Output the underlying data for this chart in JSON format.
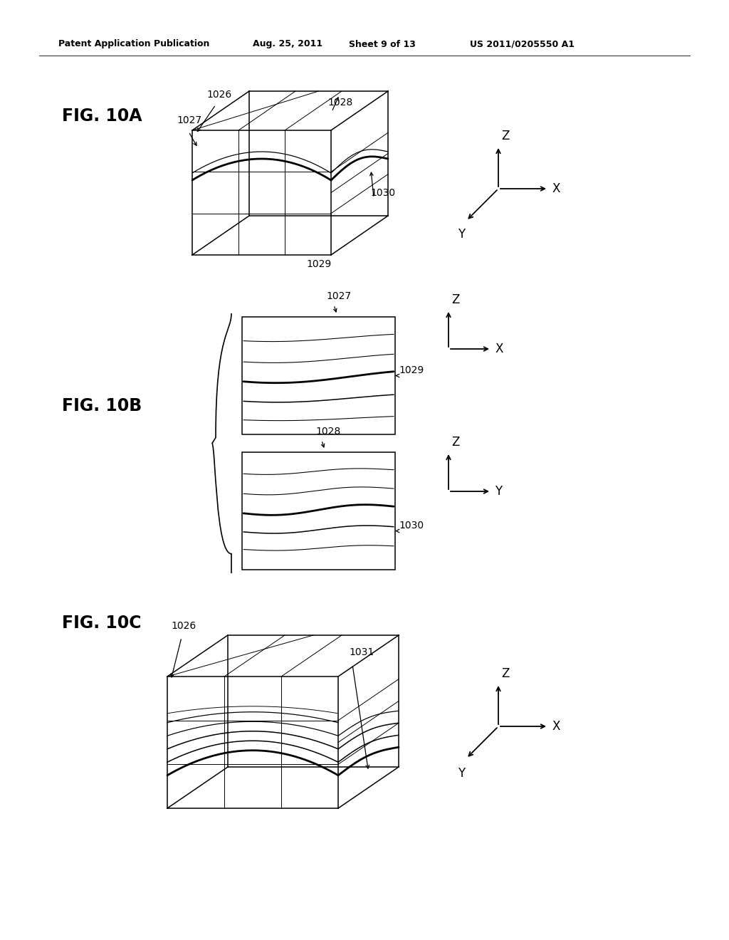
{
  "bg_color": "#ffffff",
  "header_text": "Patent Application Publication",
  "header_date": "Aug. 25, 2011",
  "header_sheet": "Sheet 9 of 13",
  "header_patent": "US 2011/0205550 A1",
  "fig10A_label": "FIG. 10A",
  "fig10B_label": "FIG. 10B",
  "fig10C_label": "FIG. 10C",
  "label_1026": "1026",
  "label_1027": "1027",
  "label_1028": "1028",
  "label_1029": "1029",
  "label_1030": "1030",
  "label_1031": "1031",
  "line_color": "#000000",
  "lw": 1.1,
  "tlw": 2.0,
  "glw": 0.7,
  "font_size_header": 9,
  "font_size_fig": 17,
  "font_size_label": 10,
  "font_size_axis": 12
}
